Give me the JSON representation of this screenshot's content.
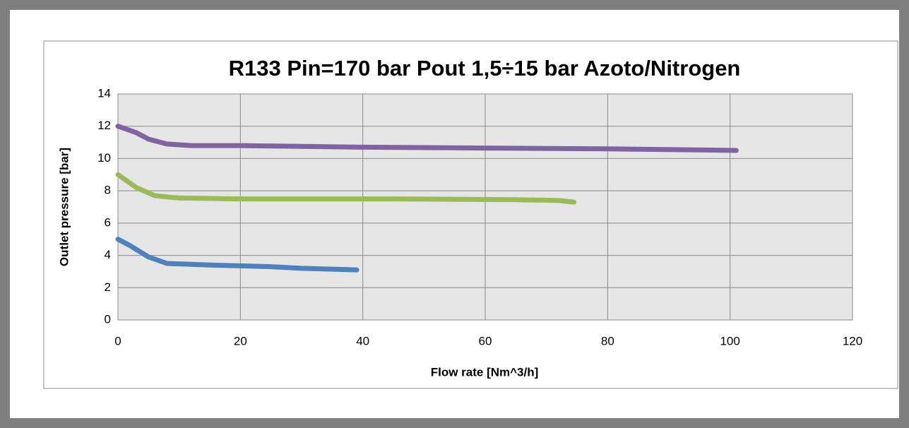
{
  "chart_data": {
    "type": "line",
    "title": "R133 Pin=170 bar  Pout 1,5÷15 bar  Azoto/Nitrogen",
    "x_label": "Flow rate [Nm^3/h]",
    "y_label": "Outlet pressure [bar]",
    "xlim": [
      0,
      120
    ],
    "xticks": [
      0,
      20,
      40,
      60,
      80,
      100,
      120
    ],
    "ylim": [
      0,
      14
    ],
    "yticks": [
      0,
      2,
      4,
      6,
      8,
      10,
      12,
      14
    ],
    "grid": true,
    "series": [
      {
        "color": "#4f81bd",
        "x": [
          0,
          2,
          5,
          8,
          15,
          25,
          30,
          39
        ],
        "values": [
          5,
          4.6,
          3.9,
          3.5,
          3.4,
          3.3,
          3.2,
          3.1
        ]
      },
      {
        "color": "#9bbb59",
        "x": [
          0,
          3,
          6,
          10,
          20,
          45,
          65,
          72,
          74.5
        ],
        "values": [
          9,
          8.2,
          7.7,
          7.55,
          7.5,
          7.5,
          7.45,
          7.4,
          7.3
        ]
      },
      {
        "color": "#8064a2",
        "x": [
          0,
          3,
          5,
          8,
          12,
          20,
          40,
          60,
          80,
          101
        ],
        "values": [
          12,
          11.6,
          11.2,
          10.9,
          10.8,
          10.8,
          10.7,
          10.65,
          10.6,
          10.5
        ]
      }
    ]
  }
}
